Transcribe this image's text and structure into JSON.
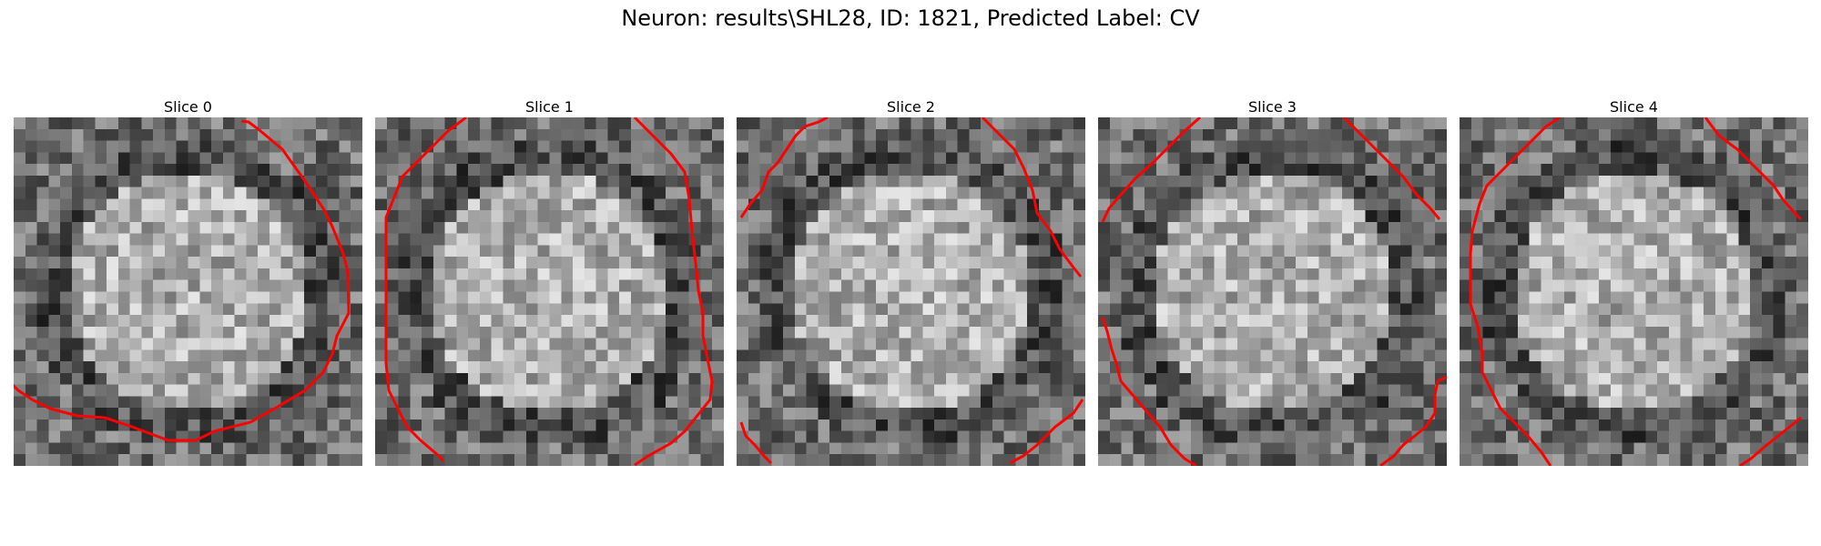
{
  "figure": {
    "title": "Neuron: results\\SHL28, ID: 1821, Predicted Label: CV"
  },
  "slices": [
    {
      "label": "Slice 0"
    },
    {
      "label": "Slice 1"
    },
    {
      "label": "Slice 2"
    },
    {
      "label": "Slice 3"
    },
    {
      "label": "Slice 4"
    }
  ],
  "colors": {
    "contour": "#ff0000",
    "background": "#ffffff"
  }
}
